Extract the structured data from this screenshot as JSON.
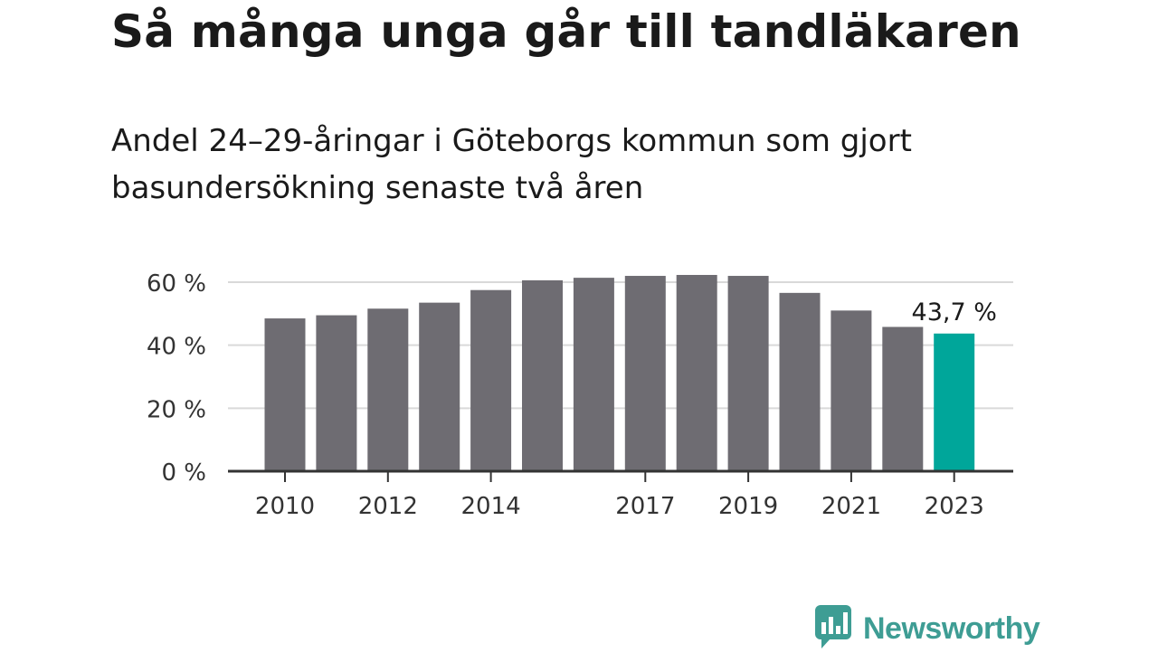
{
  "header": {
    "title": "Så många unga går till tandläkaren",
    "subtitle": "Andel 24–29-åringar i Göteborgs kommun som gjort basundersökning senaste två åren"
  },
  "brand": {
    "name": "Newsworthy",
    "icon": "newsworthy-logo-icon",
    "color": "#3e9d94"
  },
  "colors": {
    "bar": "#6e6c72",
    "highlight": "#00a69a",
    "grid": "#d9d9d9",
    "axis": "#333333"
  },
  "chart_data": {
    "type": "bar",
    "categories": [
      "2010",
      "2011",
      "2012",
      "2013",
      "2014",
      "2015",
      "2016",
      "2017",
      "2018",
      "2019",
      "2020",
      "2021",
      "2022",
      "2023"
    ],
    "values": [
      48.5,
      49.5,
      51.6,
      53.5,
      57.5,
      60.6,
      61.4,
      62.0,
      62.3,
      62.0,
      56.6,
      51.0,
      45.8,
      43.7
    ],
    "highlight_index": 13,
    "highlight_label": "43,7 %",
    "x_tick_labels": [
      "2010",
      "",
      "2012",
      "",
      "2014",
      "",
      "",
      "2017",
      "",
      "2019",
      "",
      "2021",
      "",
      "2023"
    ],
    "y_ticks": [
      0,
      20,
      40,
      60
    ],
    "y_tick_labels": [
      "0 %",
      "20 %",
      "40 %",
      "60 %"
    ],
    "ylim": [
      0,
      60
    ],
    "grid": true
  }
}
